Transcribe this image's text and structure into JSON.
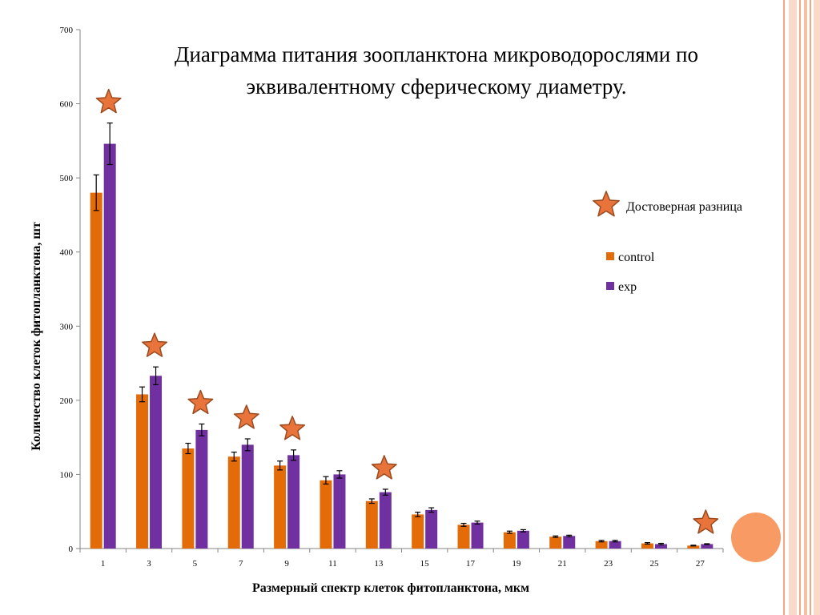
{
  "colors": {
    "control": "#e36c09",
    "exp": "#7030a0",
    "star_fill": "#e8743b",
    "star_stroke": "#9b4a1f",
    "stripe": "#f4a582",
    "decor_circle": "#f79a64"
  },
  "chart_data": {
    "type": "bar",
    "title": "Диаграмма питания зоопланктона микроводорослями по эквивалентному сферическому диаметру.",
    "xlabel": "Размерный спектр клеток фитопланктона, мкм",
    "ylabel": "Количество клеток фитопланктона, шт",
    "ylim": [
      0,
      700
    ],
    "yticks": [
      0,
      100,
      200,
      300,
      400,
      500,
      600,
      700
    ],
    "categories": [
      "1",
      "3",
      "5",
      "7",
      "9",
      "11",
      "13",
      "15",
      "17",
      "19",
      "21",
      "23",
      "25",
      "27"
    ],
    "series": [
      {
        "name": "control",
        "values": [
          480,
          208,
          135,
          124,
          112,
          92,
          64,
          46,
          32,
          22,
          16,
          10,
          7,
          4
        ],
        "errors": [
          24,
          10,
          7,
          6,
          6,
          5,
          3,
          3,
          2,
          1.5,
          1,
          1,
          1,
          0.5
        ]
      },
      {
        "name": "exp",
        "values": [
          546,
          233,
          160,
          140,
          126,
          100,
          76,
          52,
          35,
          24,
          17,
          10,
          6,
          6
        ],
        "errors": [
          28,
          12,
          8,
          8,
          7,
          5,
          4,
          3,
          2,
          1.5,
          1,
          1,
          1,
          0.5
        ]
      }
    ],
    "significant": [
      "1",
      "3",
      "5",
      "7",
      "9",
      "13",
      "27"
    ],
    "legend": {
      "significance_label": "Достоверная разница",
      "position": "right"
    },
    "grid": false
  }
}
